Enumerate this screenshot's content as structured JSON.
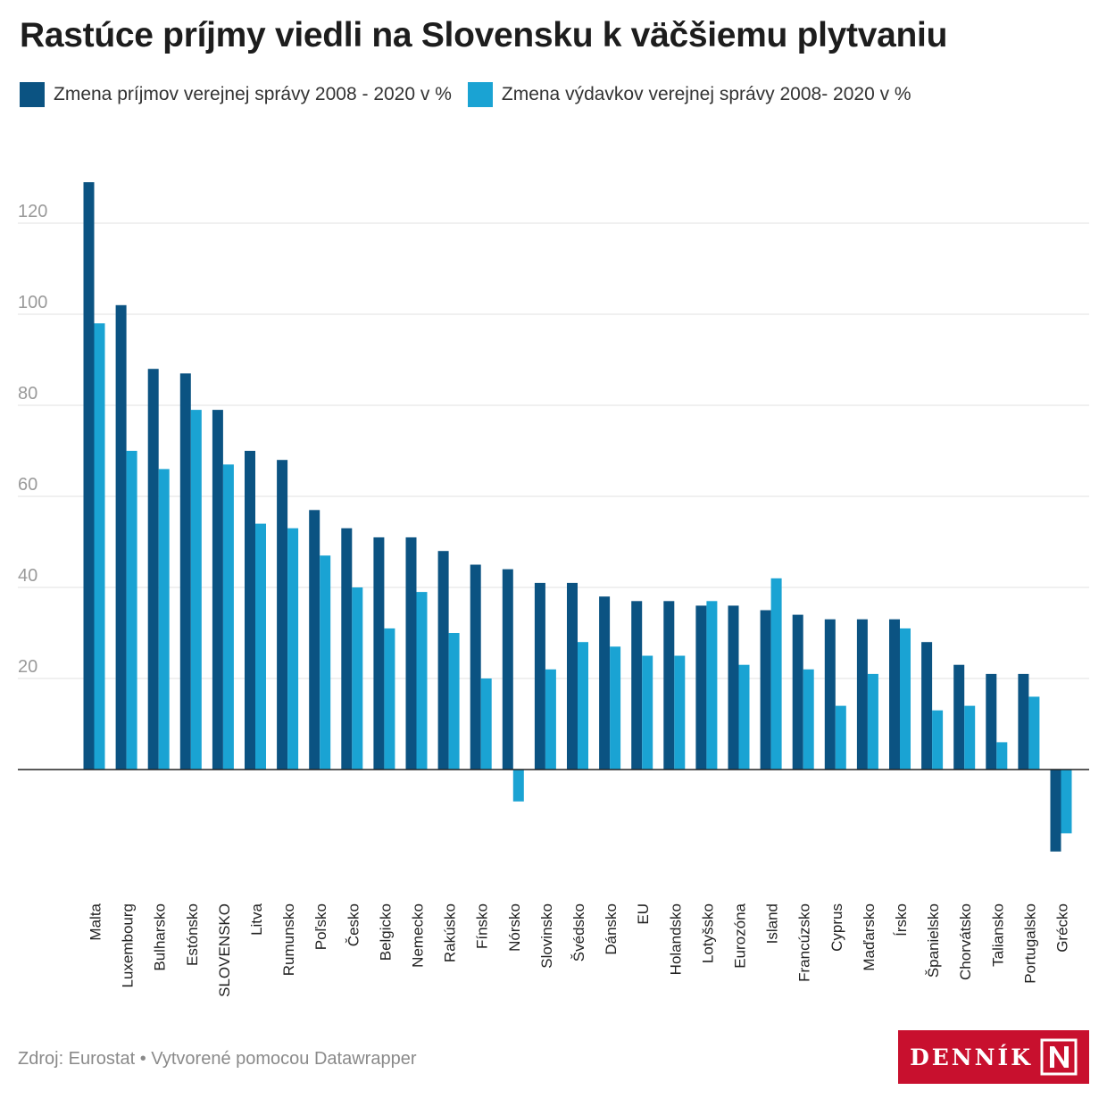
{
  "title": "Rastúce príjmy viedli na Slovensku k väčšiemu plytvaniu",
  "footer": "Zdroj: Eurostat • Vytvorené pomocou Datawrapper",
  "logo": {
    "text": "DENNÍK",
    "mark": "N"
  },
  "colors": {
    "revenue": "#0b5382",
    "expenditure": "#1aa3d3",
    "grid": "#e2e2e2",
    "axis": "#222222",
    "tick_text": "#9a9a9a",
    "logo_bg": "#c8102e"
  },
  "chart_data": {
    "type": "bar",
    "categories": [
      "Malta",
      "Luxembourg",
      "Bulharsko",
      "Estónsko",
      "SLOVENSKO",
      "Litva",
      "Rumunsko",
      "Poľsko",
      "Česko",
      "Belgicko",
      "Nemecko",
      "Rakúsko",
      "Fínsko",
      "Nórsko",
      "Slovinsko",
      "Švédsko",
      "Dánsko",
      "EU",
      "Holandsko",
      "Lotyšsko",
      "Eurozóna",
      "Island",
      "Francúzsko",
      "Cyprus",
      "Maďarsko",
      "Írsko",
      "Španielsko",
      "Chorvátsko",
      "Taliansko",
      "Portugalsko",
      "Grécko"
    ],
    "series": [
      {
        "name": "Zmena príjmov verejnej správy 2008 - 2020 v %",
        "values": [
          129,
          102,
          88,
          87,
          79,
          70,
          68,
          57,
          53,
          51,
          51,
          48,
          45,
          44,
          41,
          41,
          38,
          37,
          37,
          36,
          36,
          35,
          34,
          33,
          33,
          33,
          28,
          23,
          21,
          21,
          -18
        ]
      },
      {
        "name": "Zmena výdavkov verejnej správy 2008- 2020 v %",
        "values": [
          98,
          70,
          66,
          79,
          67,
          54,
          53,
          47,
          40,
          31,
          39,
          30,
          20,
          -7,
          22,
          28,
          27,
          25,
          25,
          37,
          23,
          42,
          22,
          14,
          21,
          31,
          13,
          14,
          6,
          16,
          -14
        ]
      }
    ],
    "yticks": [
      20,
      40,
      60,
      80,
      100,
      120
    ],
    "ylim": [
      -24,
      135
    ],
    "grid": true,
    "legend_position": "top-left"
  }
}
